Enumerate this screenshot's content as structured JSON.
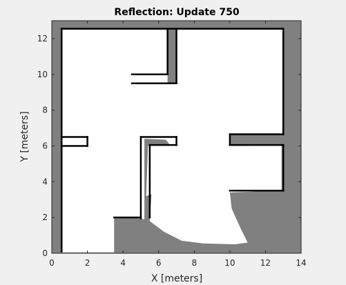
{
  "chart_data": {
    "type": "heatmap",
    "title": "Reflection: Update 750",
    "xlabel": "X [meters]",
    "ylabel": "Y [meters]",
    "xlim": [
      0,
      14
    ],
    "ylim": [
      0,
      13
    ],
    "xticks": [
      0,
      2,
      4,
      6,
      8,
      10,
      12,
      14
    ],
    "yticks": [
      0,
      2,
      4,
      6,
      8,
      10,
      12
    ],
    "grid": false,
    "colors": {
      "unexplored": "#808080",
      "free": "#ffffff",
      "occupied": "#000000",
      "figure_background": "#f0f0f0",
      "axes_edge": "#262626"
    },
    "free_regions": [
      {
        "name": "main-open-area",
        "points": [
          [
            0.6,
            0.05
          ],
          [
            3.5,
            0.05
          ],
          [
            3.5,
            2.0
          ],
          [
            4.5,
            2.0
          ],
          [
            5.2,
            1.9
          ],
          [
            5.2,
            6.4
          ],
          [
            6.4,
            6.35
          ],
          [
            6.6,
            6.1
          ],
          [
            5.4,
            6.0
          ],
          [
            5.3,
            3.2
          ],
          [
            5.6,
            3.3
          ],
          [
            5.5,
            1.8
          ],
          [
            6.3,
            1.2
          ],
          [
            7.3,
            0.7
          ],
          [
            8.5,
            0.55
          ],
          [
            10.3,
            0.5
          ],
          [
            11.0,
            0.6
          ],
          [
            10.6,
            1.4
          ],
          [
            10.1,
            2.5
          ],
          [
            10.0,
            3.4
          ],
          [
            12.9,
            3.5
          ],
          [
            12.9,
            6.05
          ],
          [
            10.2,
            6.0
          ],
          [
            10.0,
            6.1
          ],
          [
            10.0,
            6.7
          ],
          [
            12.95,
            6.7
          ],
          [
            12.95,
            12.5
          ],
          [
            7.0,
            12.5
          ],
          [
            7.0,
            9.5
          ],
          [
            6.5,
            9.5
          ],
          [
            6.5,
            12.5
          ],
          [
            0.6,
            12.5
          ]
        ]
      }
    ],
    "occupied_segments": [
      {
        "name": "outer-left-wall",
        "points": [
          [
            0.55,
            0.1
          ],
          [
            0.55,
            12.55
          ]
        ]
      },
      {
        "name": "outer-top-wall",
        "points": [
          [
            0.55,
            12.55
          ],
          [
            13.0,
            12.55
          ]
        ]
      },
      {
        "name": "outer-right-wall-upper",
        "points": [
          [
            13.0,
            12.55
          ],
          [
            13.0,
            6.65
          ]
        ]
      },
      {
        "name": "outer-right-wall-lower",
        "points": [
          [
            13.0,
            6.05
          ],
          [
            13.0,
            3.5
          ]
        ]
      },
      {
        "name": "lower-right-room-top-wall",
        "points": [
          [
            10.0,
            3.5
          ],
          [
            13.0,
            3.5
          ]
        ]
      },
      {
        "name": "left-room-divider-upper",
        "points": [
          [
            0.55,
            6.5
          ],
          [
            2.0,
            6.5
          ]
        ]
      },
      {
        "name": "left-room-divider-lower",
        "points": [
          [
            0.55,
            6.0
          ],
          [
            2.0,
            6.0
          ]
        ]
      },
      {
        "name": "left-room-divider-end",
        "points": [
          [
            2.0,
            6.0
          ],
          [
            2.0,
            6.5
          ]
        ]
      },
      {
        "name": "center-divider-upper",
        "points": [
          [
            5.0,
            6.5
          ],
          [
            7.0,
            6.5
          ]
        ]
      },
      {
        "name": "center-divider-end",
        "points": [
          [
            7.0,
            6.5
          ],
          [
            7.0,
            6.05
          ]
        ]
      },
      {
        "name": "center-divider-lower",
        "points": [
          [
            5.5,
            6.05
          ],
          [
            7.0,
            6.05
          ]
        ]
      },
      {
        "name": "center-pillar-left",
        "points": [
          [
            5.0,
            6.5
          ],
          [
            5.0,
            1.95
          ]
        ]
      },
      {
        "name": "center-pillar-right",
        "points": [
          [
            5.5,
            6.05
          ],
          [
            5.5,
            2.0
          ]
        ]
      },
      {
        "name": "right-divider-upper",
        "points": [
          [
            10.0,
            6.65
          ],
          [
            13.0,
            6.65
          ]
        ]
      },
      {
        "name": "right-divider-lower",
        "points": [
          [
            10.0,
            6.05
          ],
          [
            13.0,
            6.05
          ]
        ]
      },
      {
        "name": "right-divider-end",
        "points": [
          [
            10.0,
            6.05
          ],
          [
            10.0,
            6.65
          ]
        ]
      },
      {
        "name": "top-notch-left",
        "points": [
          [
            6.5,
            12.5
          ],
          [
            6.5,
            10.0
          ]
        ]
      },
      {
        "name": "top-notch-bottom",
        "points": [
          [
            4.5,
            10.0
          ],
          [
            6.5,
            10.0
          ]
        ]
      },
      {
        "name": "top-notch-lower",
        "points": [
          [
            4.5,
            9.5
          ],
          [
            7.0,
            9.5
          ]
        ]
      },
      {
        "name": "top-notch-right",
        "points": [
          [
            7.0,
            9.5
          ],
          [
            7.0,
            12.5
          ]
        ]
      },
      {
        "name": "bottom-room-top-edge",
        "points": [
          [
            3.5,
            2.0
          ],
          [
            5.0,
            2.0
          ]
        ]
      }
    ]
  }
}
